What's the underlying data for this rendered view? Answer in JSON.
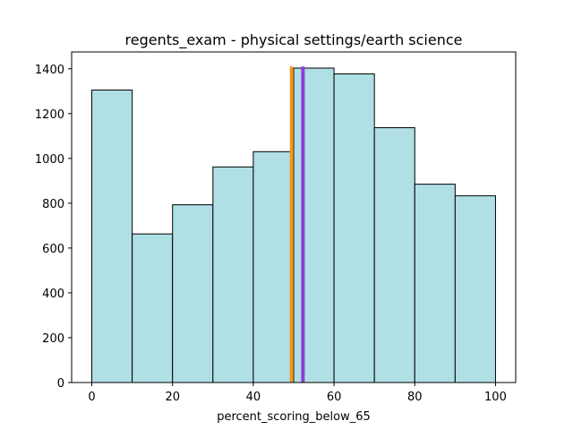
{
  "chart_data": {
    "type": "bar",
    "title": "regents_exam - physical settings/earth science",
    "xlabel": "percent_scoring_below_65",
    "ylabel": "",
    "bin_edges": [
      0,
      10,
      20,
      30,
      40,
      50,
      60,
      70,
      80,
      90,
      100
    ],
    "values": [
      1305,
      663,
      793,
      962,
      1030,
      1403,
      1377,
      1137,
      885,
      833
    ],
    "xlim": [
      -5,
      105
    ],
    "ylim": [
      0,
      1475
    ],
    "xticks": [
      0,
      20,
      40,
      60,
      80,
      100
    ],
    "yticks": [
      0,
      200,
      400,
      600,
      800,
      1000,
      1200,
      1400
    ],
    "grid": false,
    "bar_color": "#b0dfe5",
    "bar_edge_color": "#000000",
    "reference_lines": [
      {
        "x": 49.5,
        "color": "#f0961e"
      },
      {
        "x": 52.3,
        "color": "#8e3fd6"
      }
    ]
  }
}
